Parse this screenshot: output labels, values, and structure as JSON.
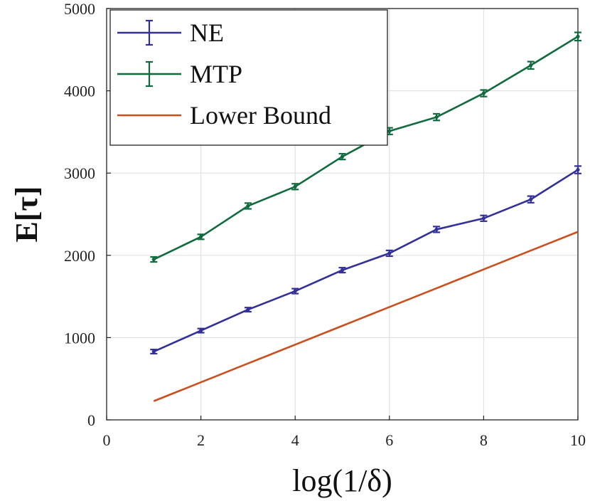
{
  "chart_data": {
    "type": "line",
    "title": "",
    "xlabel": "log(1/δ)",
    "ylabel": "E[τ]",
    "xlim": [
      0,
      10
    ],
    "ylim": [
      0,
      5000
    ],
    "xticks": [
      0,
      2,
      4,
      6,
      8,
      10
    ],
    "yticks": [
      0,
      1000,
      2000,
      3000,
      4000,
      5000
    ],
    "grid": true,
    "legend_position": "top-left",
    "x": [
      1,
      2,
      3,
      4,
      5,
      6,
      7,
      8,
      9,
      10
    ],
    "series": [
      {
        "name": "NE",
        "color": "#34309a",
        "error_bars": true,
        "values": [
          830,
          1085,
          1340,
          1565,
          1820,
          2025,
          2315,
          2450,
          2680,
          3040
        ],
        "errors": [
          25,
          25,
          25,
          30,
          30,
          35,
          35,
          35,
          40,
          45
        ]
      },
      {
        "name": "MTP",
        "color": "#0f6b3e",
        "error_bars": true,
        "values": [
          1950,
          2225,
          2600,
          2835,
          3200,
          3510,
          3680,
          3970,
          4310,
          4660
        ],
        "errors": [
          30,
          30,
          35,
          35,
          35,
          40,
          40,
          40,
          45,
          50
        ]
      },
      {
        "name": "Lower Bound",
        "color": "#c8501e",
        "error_bars": false,
        "values": [
          228,
          457,
          686,
          914,
          1143,
          1372,
          1600,
          1829,
          2058,
          2286
        ]
      }
    ]
  }
}
